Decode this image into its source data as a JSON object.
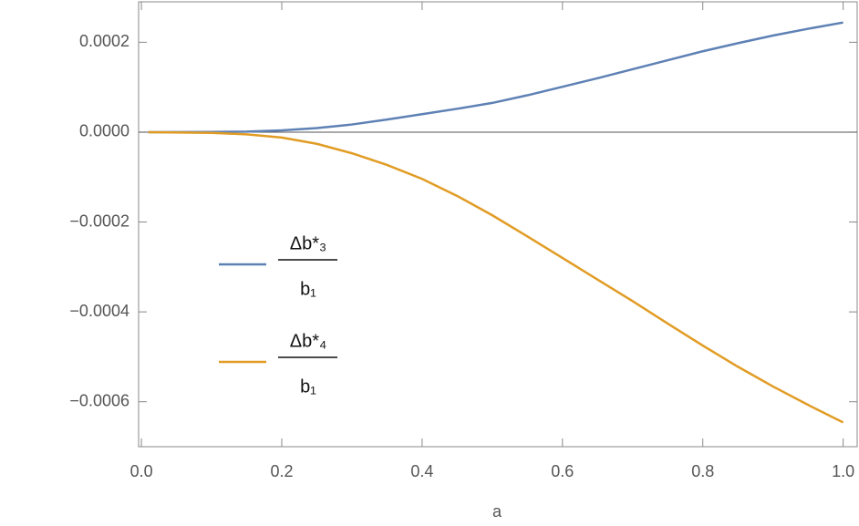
{
  "chart_data": {
    "type": "line",
    "x_label": "a",
    "x": [
      0.01,
      0.1,
      0.15,
      0.2,
      0.25,
      0.3,
      0.35,
      0.4,
      0.45,
      0.5,
      0.55,
      0.6,
      0.65,
      0.7,
      0.75,
      0.8,
      0.85,
      0.9,
      0.95,
      1.0
    ],
    "series": [
      {
        "name": {
          "numerator": "Δb*₃",
          "denominator": "b₁"
        },
        "color": "#5e81b5",
        "values": [
          0,
          3e-07,
          1.2e-06,
          4e-06,
          9e-06,
          1.7e-05,
          2.8e-05,
          4e-05,
          5.2e-05,
          6.5e-05,
          8.2e-05,
          0.000101,
          0.00012,
          0.00014,
          0.00016,
          0.00018,
          0.000198,
          0.000215,
          0.00023,
          0.000244
        ]
      },
      {
        "name": {
          "numerator": "Δb*₄",
          "denominator": "b₁"
        },
        "color": "#e19c24",
        "values": [
          0,
          -1.5e-06,
          -5e-06,
          -1.2e-05,
          -2.6e-05,
          -4.7e-05,
          -7.3e-05,
          -0.000104,
          -0.000142,
          -0.000185,
          -0.000232,
          -0.00028,
          -0.000328,
          -0.000376,
          -0.000426,
          -0.000475,
          -0.000522,
          -0.000566,
          -0.000607,
          -0.000646
        ]
      }
    ],
    "xlim": [
      -0.004,
      1.02
    ],
    "ylim": [
      -0.0007,
      0.00029
    ],
    "xticks": [
      {
        "value": 0,
        "label": "0.0"
      },
      0.2,
      0.4,
      0.6,
      0.8,
      {
        "value": 1,
        "label": "1.0"
      }
    ],
    "yticks": [
      {
        "value": -0.0006,
        "label": "−0.0006"
      },
      {
        "value": -0.0004,
        "label": "−0.0004"
      },
      {
        "value": -0.0002,
        "label": "−0.0002"
      },
      {
        "value": 0,
        "label": "0.0000"
      },
      0.0002
    ],
    "zero_line": true,
    "legend": "left"
  }
}
